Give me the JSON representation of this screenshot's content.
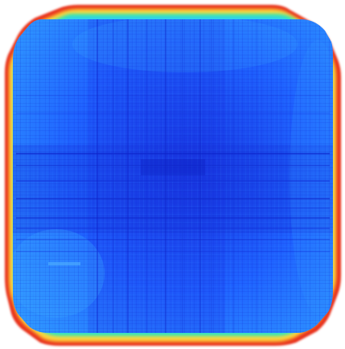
{
  "image": {
    "kind": "false-color intensity map",
    "description_visible_text": "",
    "colormap": "jet",
    "colors": {
      "background": "#ffffff",
      "edge_hot": "#e8321c",
      "edge_warm": "#ffd43a",
      "edge_transition": "#37e8b0",
      "body_light": "#2f97ff",
      "body_mid": "#1f62ff",
      "body_dark": "#1733df"
    }
  }
}
